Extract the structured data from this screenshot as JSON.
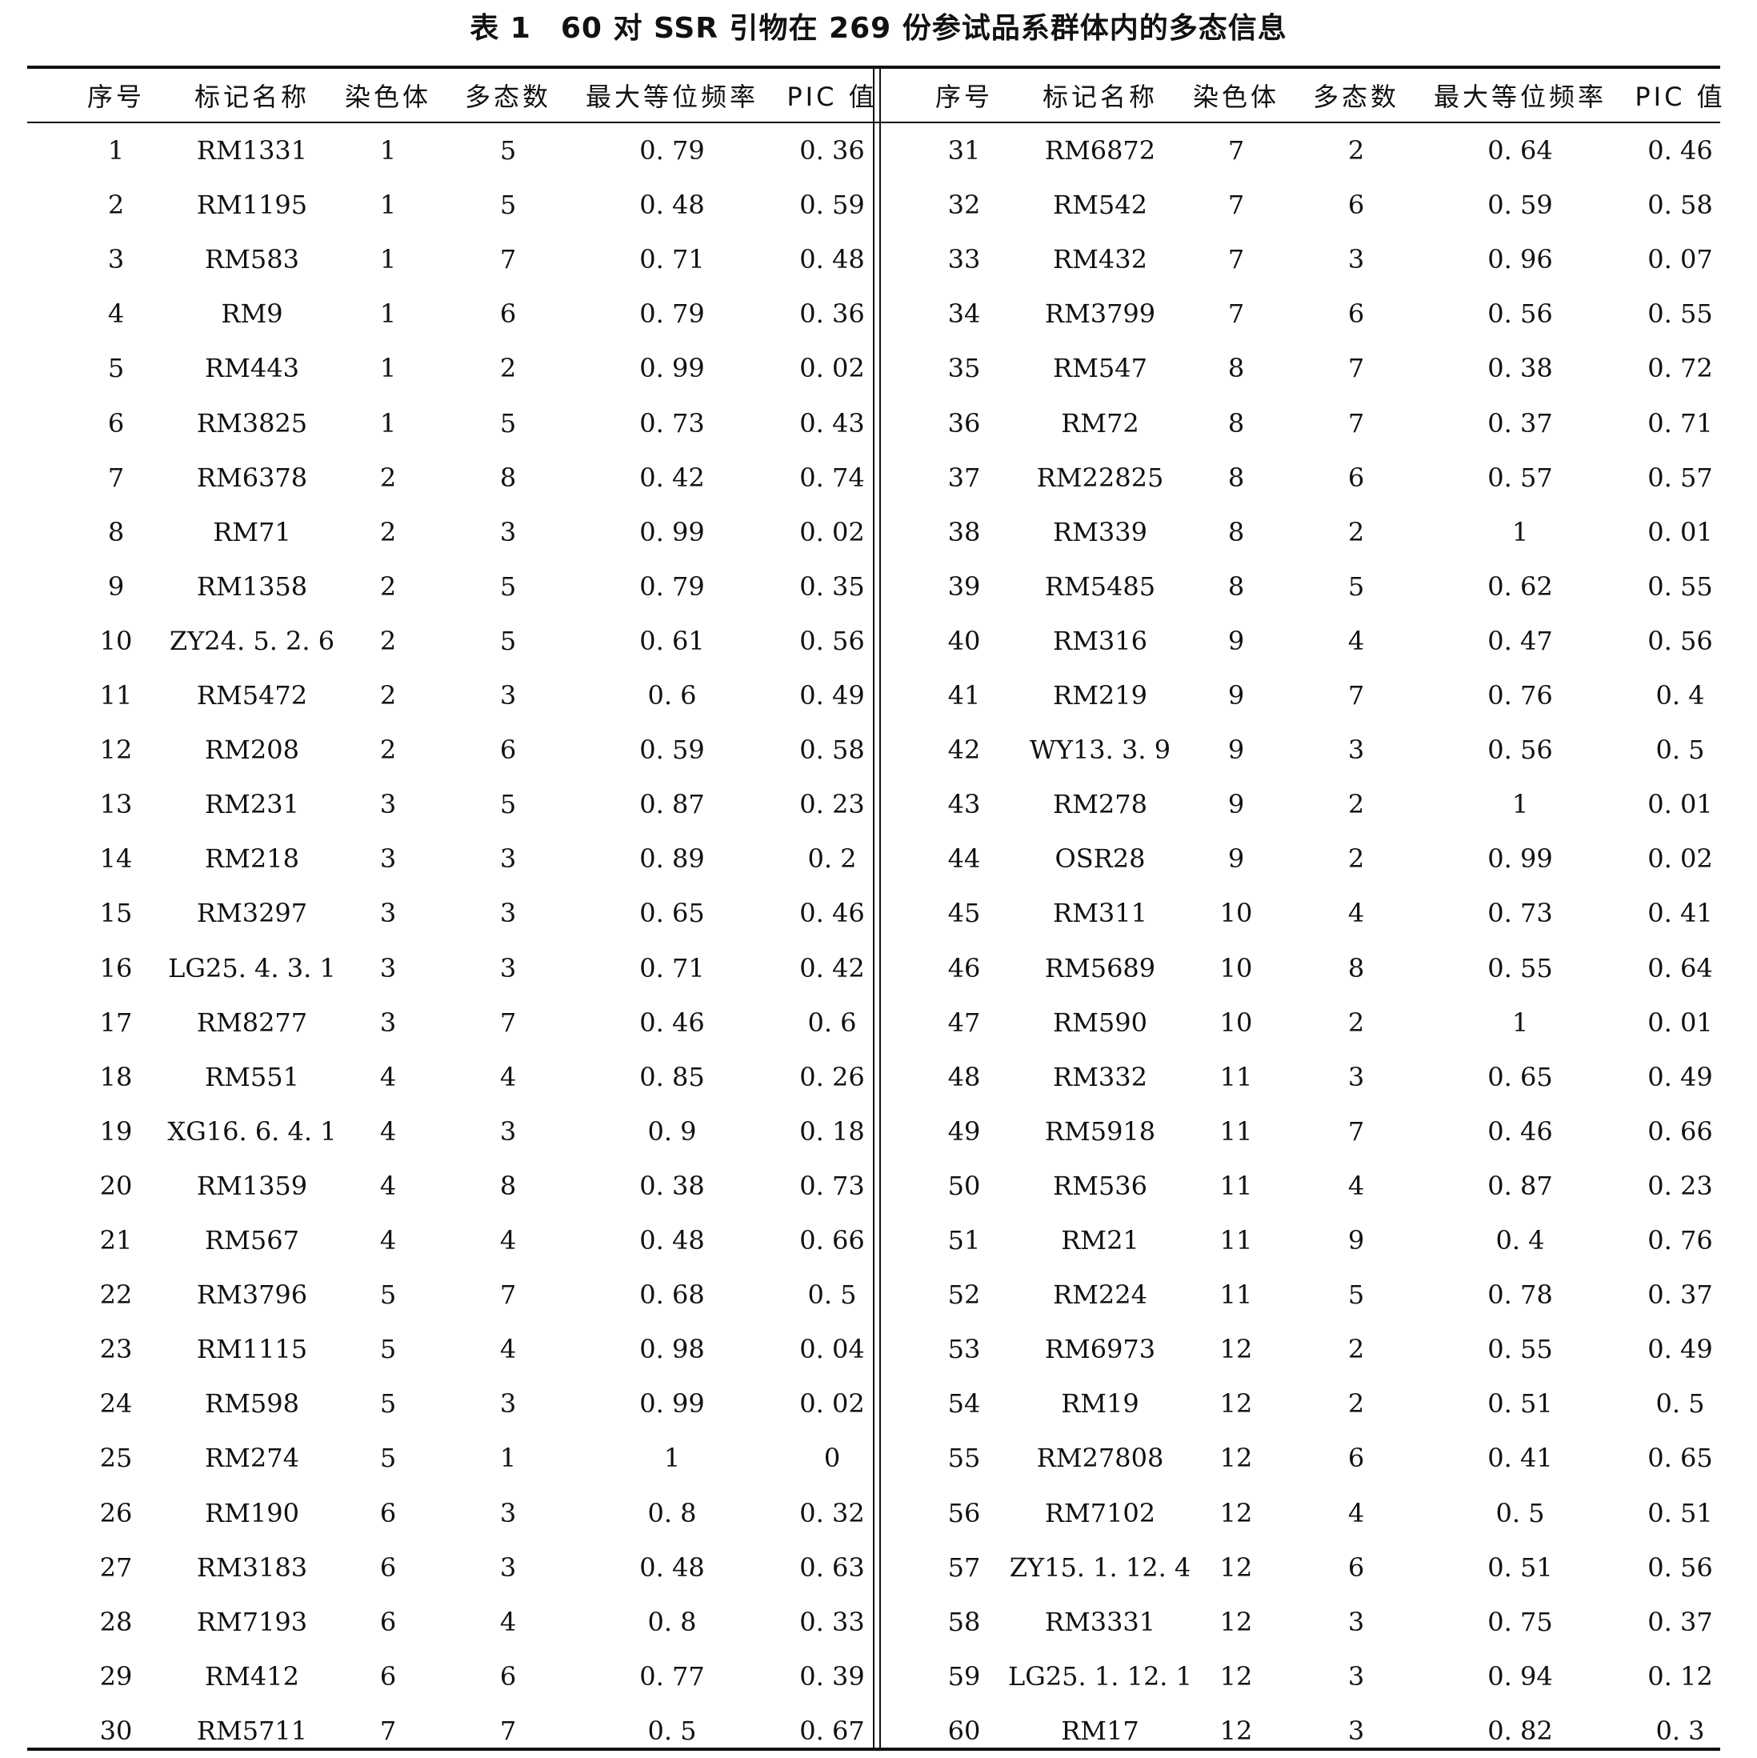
{
  "title": "表 1　60 对 SSR 引物在 269 份参试品系群体内的多态信息",
  "headers": [
    "序号",
    "标记名称",
    "染色体",
    "多态数",
    "最大等位频率",
    "PIC 值",
    "序号",
    "标记名称",
    "染色体",
    "多态数",
    "最大等位频率",
    "PIC 值"
  ],
  "rows": [
    [
      "1",
      "RM1331",
      "1",
      "5",
      "0. 79",
      "0. 36",
      "31",
      "RM6872",
      "7",
      "2",
      "0. 64",
      "0. 46"
    ],
    [
      "2",
      "RM1195",
      "1",
      "5",
      "0. 48",
      "0. 59",
      "32",
      "RM542",
      "7",
      "6",
      "0. 59",
      "0. 58"
    ],
    [
      "3",
      "RM583",
      "1",
      "7",
      "0. 71",
      "0. 48",
      "33",
      "RM432",
      "7",
      "3",
      "0. 96",
      "0. 07"
    ],
    [
      "4",
      "RM9",
      "1",
      "6",
      "0. 79",
      "0. 36",
      "34",
      "RM3799",
      "7",
      "6",
      "0. 56",
      "0. 55"
    ],
    [
      "5",
      "RM443",
      "1",
      "2",
      "0. 99",
      "0. 02",
      "35",
      "RM547",
      "8",
      "7",
      "0. 38",
      "0. 72"
    ],
    [
      "6",
      "RM3825",
      "1",
      "5",
      "0. 73",
      "0. 43",
      "36",
      "RM72",
      "8",
      "7",
      "0. 37",
      "0. 71"
    ],
    [
      "7",
      "RM6378",
      "2",
      "8",
      "0. 42",
      "0. 74",
      "37",
      "RM22825",
      "8",
      "6",
      "0. 57",
      "0. 57"
    ],
    [
      "8",
      "RM71",
      "2",
      "3",
      "0. 99",
      "0. 02",
      "38",
      "RM339",
      "8",
      "2",
      "1",
      "0. 01"
    ],
    [
      "9",
      "RM1358",
      "2",
      "5",
      "0. 79",
      "0. 35",
      "39",
      "RM5485",
      "8",
      "5",
      "0. 62",
      "0. 55"
    ],
    [
      "10",
      "ZY24. 5. 2. 6",
      "2",
      "5",
      "0. 61",
      "0. 56",
      "40",
      "RM316",
      "9",
      "4",
      "0. 47",
      "0. 56"
    ],
    [
      "11",
      "RM5472",
      "2",
      "3",
      "0. 6",
      "0. 49",
      "41",
      "RM219",
      "9",
      "7",
      "0. 76",
      "0. 4"
    ],
    [
      "12",
      "RM208",
      "2",
      "6",
      "0. 59",
      "0. 58",
      "42",
      "WY13. 3. 9",
      "9",
      "3",
      "0. 56",
      "0. 5"
    ],
    [
      "13",
      "RM231",
      "3",
      "5",
      "0. 87",
      "0. 23",
      "43",
      "RM278",
      "9",
      "2",
      "1",
      "0. 01"
    ],
    [
      "14",
      "RM218",
      "3",
      "3",
      "0. 89",
      "0. 2",
      "44",
      "OSR28",
      "9",
      "2",
      "0. 99",
      "0. 02"
    ],
    [
      "15",
      "RM3297",
      "3",
      "3",
      "0. 65",
      "0. 46",
      "45",
      "RM311",
      "10",
      "4",
      "0. 73",
      "0. 41"
    ],
    [
      "16",
      "LG25. 4. 3. 1",
      "3",
      "3",
      "0. 71",
      "0. 42",
      "46",
      "RM5689",
      "10",
      "8",
      "0. 55",
      "0. 64"
    ],
    [
      "17",
      "RM8277",
      "3",
      "7",
      "0. 46",
      "0. 6",
      "47",
      "RM590",
      "10",
      "2",
      "1",
      "0. 01"
    ],
    [
      "18",
      "RM551",
      "4",
      "4",
      "0. 85",
      "0. 26",
      "48",
      "RM332",
      "11",
      "3",
      "0. 65",
      "0. 49"
    ],
    [
      "19",
      "XG16. 6. 4. 1",
      "4",
      "3",
      "0. 9",
      "0. 18",
      "49",
      "RM5918",
      "11",
      "7",
      "0. 46",
      "0. 66"
    ],
    [
      "20",
      "RM1359",
      "4",
      "8",
      "0. 38",
      "0. 73",
      "50",
      "RM536",
      "11",
      "4",
      "0. 87",
      "0. 23"
    ],
    [
      "21",
      "RM567",
      "4",
      "4",
      "0. 48",
      "0. 66",
      "51",
      "RM21",
      "11",
      "9",
      "0. 4",
      "0. 76"
    ],
    [
      "22",
      "RM3796",
      "5",
      "7",
      "0. 68",
      "0. 5",
      "52",
      "RM224",
      "11",
      "5",
      "0. 78",
      "0. 37"
    ],
    [
      "23",
      "RM1115",
      "5",
      "4",
      "0. 98",
      "0. 04",
      "53",
      "RM6973",
      "12",
      "2",
      "0. 55",
      "0. 49"
    ],
    [
      "24",
      "RM598",
      "5",
      "3",
      "0. 99",
      "0. 02",
      "54",
      "RM19",
      "12",
      "2",
      "0. 51",
      "0. 5"
    ],
    [
      "25",
      "RM274",
      "5",
      "1",
      "1",
      "0",
      "55",
      "RM27808",
      "12",
      "6",
      "0. 41",
      "0. 65"
    ],
    [
      "26",
      "RM190",
      "6",
      "3",
      "0. 8",
      "0. 32",
      "56",
      "RM7102",
      "12",
      "4",
      "0. 5",
      "0. 51"
    ],
    [
      "27",
      "RM3183",
      "6",
      "3",
      "0. 48",
      "0. 63",
      "57",
      "ZY15. 1. 12. 4",
      "12",
      "6",
      "0. 51",
      "0. 56"
    ],
    [
      "28",
      "RM7193",
      "6",
      "4",
      "0. 8",
      "0. 33",
      "58",
      "RM3331",
      "12",
      "3",
      "0. 75",
      "0. 37"
    ],
    [
      "29",
      "RM412",
      "6",
      "6",
      "0. 77",
      "0. 39",
      "59",
      "LG25. 1. 12. 1",
      "12",
      "3",
      "0. 94",
      "0. 12"
    ],
    [
      "30",
      "RM5711",
      "7",
      "7",
      "0. 5",
      "0. 67",
      "60",
      "RM17",
      "12",
      "3",
      "0. 82",
      "0. 3"
    ]
  ]
}
